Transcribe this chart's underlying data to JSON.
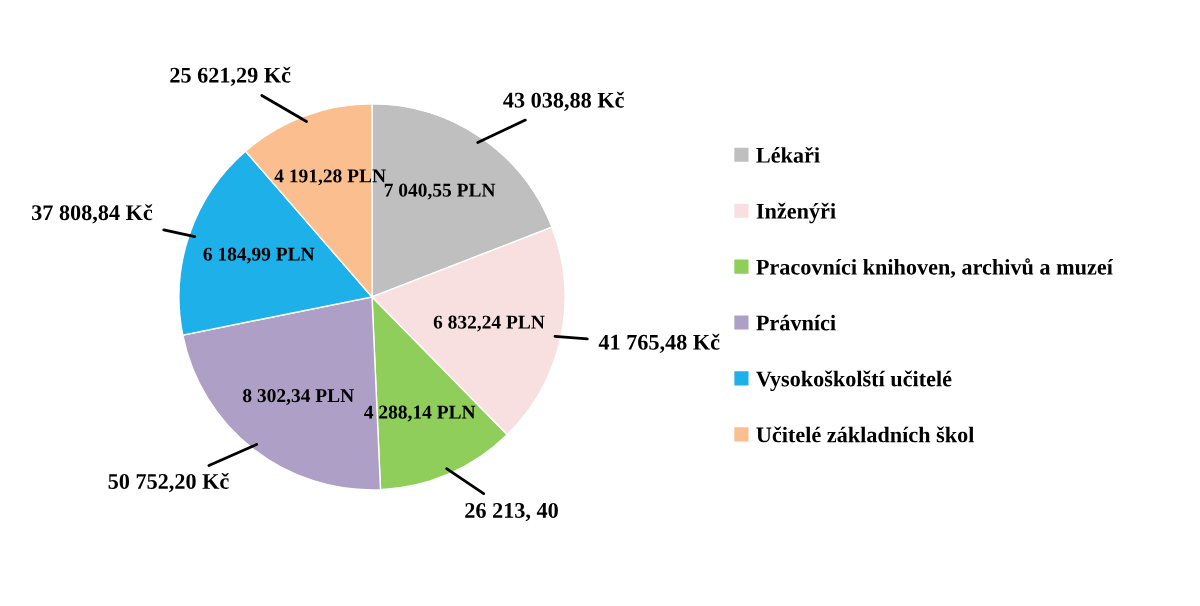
{
  "chart_data": {
    "type": "pie",
    "categories": [
      "Lékaři",
      "Inženýři",
      "Pracovníci knihoven, archivů a muzeí",
      "Právníci",
      "Vysokoškolští učitelé",
      "Učitelé základních škol"
    ],
    "values": [
      7040.55,
      6832.24,
      4288.14,
      8302.34,
      6184.99,
      4191.28
    ],
    "value_labels": [
      "7 040,55 PLN",
      "6 832,24 PLN",
      "4 288,14 PLN",
      "8 302,34 PLN",
      "6 184,99 PLN",
      "4 191,28 PLN"
    ],
    "colors": [
      "#bfbfbf",
      "#f8e0e0",
      "#8fce5a",
      "#ad9fc6",
      "#1eb0e8",
      "#fbbf8f"
    ],
    "annotations": [
      "43 038,88 Kč",
      "41 765,48 Kč",
      "26 213, 40",
      "50 752,20 Kč",
      "37 808,84 Kč",
      "25 621,29 Kč"
    ],
    "legend": "right"
  }
}
